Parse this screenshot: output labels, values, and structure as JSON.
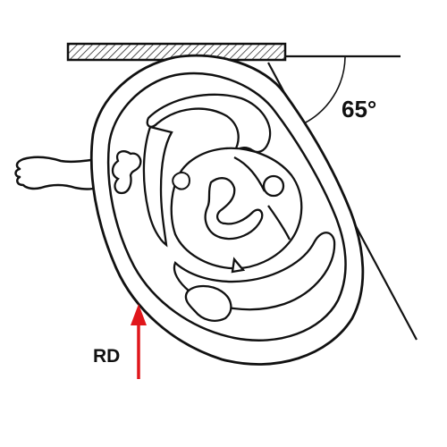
{
  "diagram": {
    "angle_label": "65°",
    "arrow_label": "RD"
  },
  "colors": {
    "line": "#111111",
    "arrow": "#e0161b",
    "plate_fill": "#e8e8e8",
    "background": "#ffffff"
  },
  "icons": {
    "rotation_arrow": "red-up-arrow",
    "plate": "hatched-plate"
  }
}
